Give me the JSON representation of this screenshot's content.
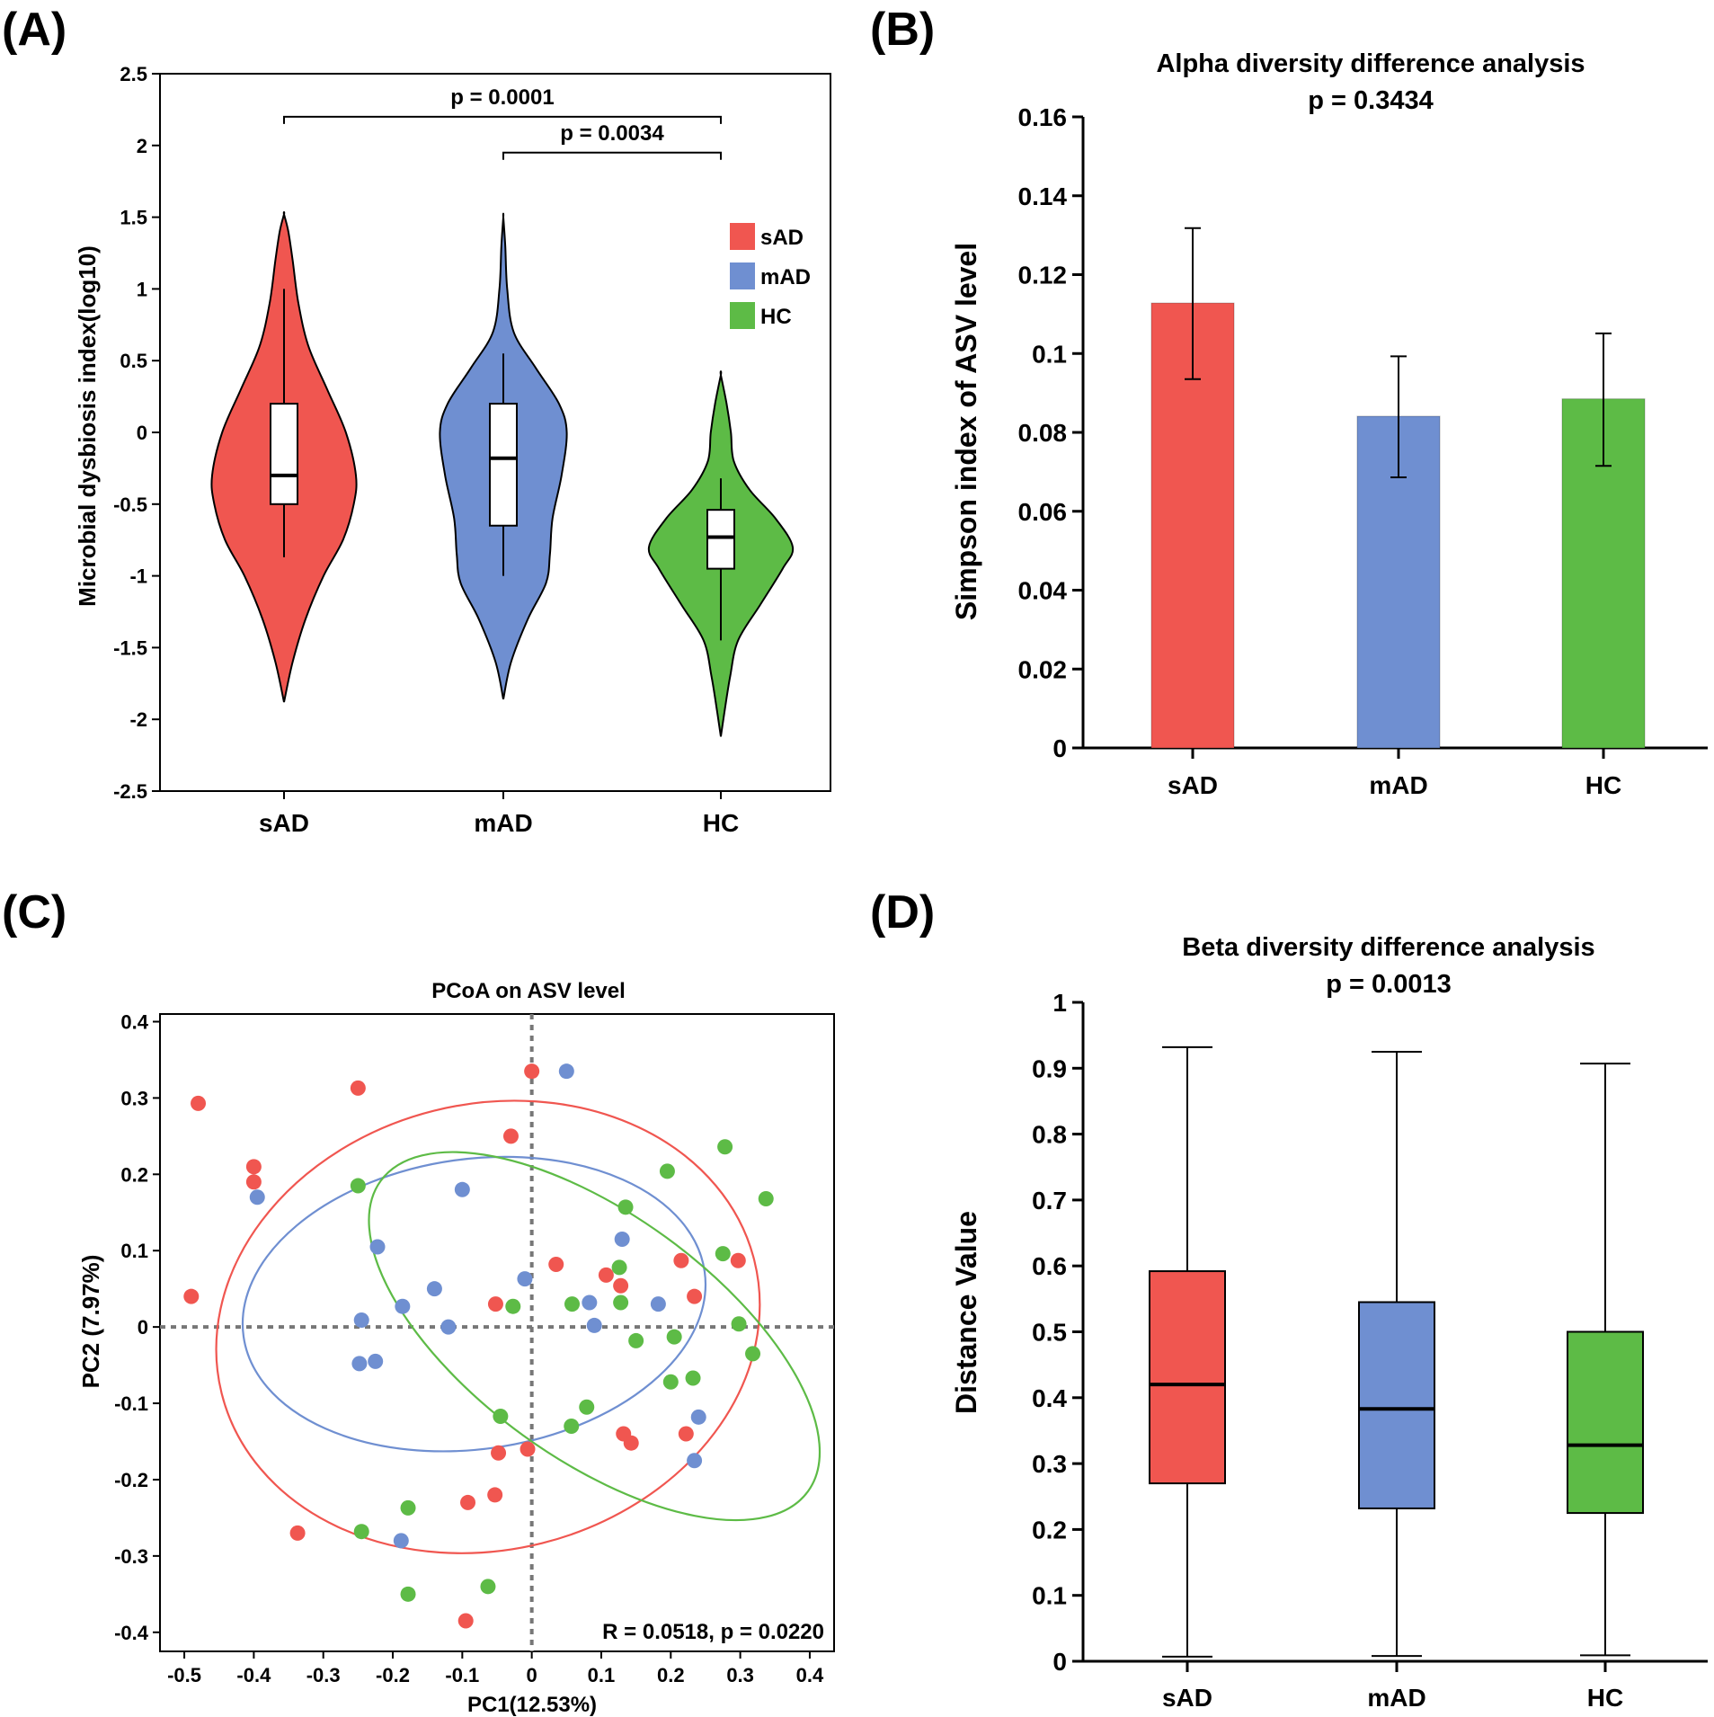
{
  "panel_labels": [
    "(A)",
    "(B)",
    "(C)",
    "(D)"
  ],
  "colors": {
    "sAD": "#f05650",
    "mAD": "#6f8fd1",
    "HC": "#5dbb46"
  },
  "chart_data": [
    {
      "panel": "(A)",
      "type": "violin",
      "title": "",
      "ylabel": "Microbial dysbiosis index(log10)",
      "xlabel": "",
      "ylim": [
        -2.5,
        2.5
      ],
      "yticks": [
        2.5,
        2,
        1.5,
        1,
        0.5,
        0,
        -0.5,
        -1,
        -1.5,
        -2,
        -2.5
      ],
      "ytick_labels": [
        "2.5",
        "2",
        "1.5",
        "1",
        "0.5",
        "0",
        "-0.5",
        "-1",
        "-1.5",
        "-2",
        "-2.5"
      ],
      "categories": [
        "sAD",
        "mAD",
        "HC"
      ],
      "legend": [
        "sAD",
        "mAD",
        "HC"
      ],
      "legend_position": "top-right",
      "violins": [
        {
          "name": "sAD",
          "min": -1.88,
          "max": 1.52,
          "q1": -0.5,
          "median": -0.3,
          "q3": 0.2,
          "whisker_low": -0.87,
          "whisker_high": 1.0,
          "density": [
            [
              -1.88,
              0
            ],
            [
              -1.6,
              0.12
            ],
            [
              -1.3,
              0.3
            ],
            [
              -1.0,
              0.55
            ],
            [
              -0.75,
              0.82
            ],
            [
              -0.5,
              0.97
            ],
            [
              -0.3,
              1.0
            ],
            [
              0,
              0.86
            ],
            [
              0.3,
              0.6
            ],
            [
              0.6,
              0.34
            ],
            [
              0.9,
              0.2
            ],
            [
              1.2,
              0.12
            ],
            [
              1.4,
              0.06
            ],
            [
              1.52,
              0
            ]
          ]
        },
        {
          "name": "mAD",
          "min": -1.86,
          "max": 1.5,
          "q1": -0.65,
          "median": -0.18,
          "q3": 0.2,
          "whisker_low": -1.0,
          "whisker_high": 0.55,
          "density": [
            [
              -1.86,
              0
            ],
            [
              -1.6,
              0.12
            ],
            [
              -1.3,
              0.38
            ],
            [
              -1.05,
              0.66
            ],
            [
              -0.85,
              0.72
            ],
            [
              -0.6,
              0.76
            ],
            [
              -0.3,
              0.9
            ],
            [
              0,
              0.98
            ],
            [
              0.2,
              0.86
            ],
            [
              0.45,
              0.5
            ],
            [
              0.7,
              0.16
            ],
            [
              1.0,
              0.06
            ],
            [
              1.3,
              0.03
            ],
            [
              1.5,
              0
            ]
          ]
        },
        {
          "name": "HC",
          "min": -2.12,
          "max": 0.4,
          "q1": -0.95,
          "median": -0.73,
          "q3": -0.54,
          "whisker_low": -1.45,
          "whisker_high": -0.32,
          "density": [
            [
              -2.12,
              0
            ],
            [
              -1.95,
              0.05
            ],
            [
              -1.7,
              0.13
            ],
            [
              -1.45,
              0.24
            ],
            [
              -1.2,
              0.55
            ],
            [
              -0.95,
              0.86
            ],
            [
              -0.8,
              1.0
            ],
            [
              -0.6,
              0.76
            ],
            [
              -0.4,
              0.4
            ],
            [
              -0.2,
              0.18
            ],
            [
              0,
              0.14
            ],
            [
              0.2,
              0.08
            ],
            [
              0.4,
              0
            ]
          ]
        }
      ],
      "brackets": [
        {
          "from": "sAD",
          "to": "HC",
          "y": 2.2,
          "label": "p = 0.0001"
        },
        {
          "from": "mAD",
          "to": "HC",
          "y": 1.95,
          "label": "p = 0.0034"
        }
      ]
    },
    {
      "panel": "(B)",
      "type": "bar",
      "title": "Alpha diversity difference analysis",
      "subtitle": "p = 0.3434",
      "ylabel": "Simpson index of ASV level",
      "xlabel": "",
      "ylim": [
        0,
        0.16
      ],
      "yticks": [
        0,
        0.02,
        0.04,
        0.06,
        0.08,
        0.1,
        0.12,
        0.14,
        0.16
      ],
      "ytick_labels": [
        "0",
        "0.02",
        "0.04",
        "0.06",
        "0.08",
        "0.1",
        "0.12",
        "0.14",
        "0.16"
      ],
      "categories": [
        "sAD",
        "mAD",
        "HC"
      ],
      "values": [
        0.1128,
        0.0841,
        0.0885
      ],
      "error_low": [
        0.0935,
        0.0686,
        0.0715
      ],
      "error_high": [
        0.1318,
        0.0993,
        0.1051
      ]
    },
    {
      "panel": "(C)",
      "type": "scatter",
      "title": "PCoA on ASV level",
      "xlabel": "PC1(12.53%)",
      "ylabel": "PC2 (7.97%)",
      "xlim": [
        -0.535,
        0.435
      ],
      "ylim": [
        -0.425,
        0.41
      ],
      "xticks": [
        -0.5,
        -0.4,
        -0.3,
        -0.2,
        -0.1,
        0,
        0.1,
        0.2,
        0.3,
        0.4
      ],
      "xtick_labels": [
        "-0.5",
        "-0.4",
        "-0.3",
        "-0.2",
        "-0.1",
        "0",
        "0.1",
        "0.2",
        "0.3",
        "0.4"
      ],
      "yticks": [
        0.4,
        0.3,
        0.2,
        0.1,
        0,
        -0.1,
        -0.2,
        -0.3,
        -0.4
      ],
      "ytick_labels": [
        "0.4",
        "0.3",
        "0.2",
        "0.1",
        "0",
        "-0.1",
        "-0.2",
        "-0.3",
        "-0.4"
      ],
      "annotation": "R = 0.0518, p = 0.0220",
      "series": [
        {
          "name": "sAD",
          "points": [
            [
              -0.48,
              0.293
            ],
            [
              -0.49,
              0.04
            ],
            [
              -0.4,
              0.21
            ],
            [
              -0.4,
              0.19
            ],
            [
              -0.25,
              0.313
            ],
            [
              0,
              0.335
            ],
            [
              -0.03,
              0.25
            ],
            [
              0.035,
              0.082
            ],
            [
              0.107,
              0.068
            ],
            [
              0.128,
              0.054
            ],
            [
              0.215,
              0.087
            ],
            [
              0.234,
              0.04
            ],
            [
              0.297,
              0.087
            ],
            [
              -0.052,
              0.03
            ],
            [
              0.132,
              -0.14
            ],
            [
              0.143,
              -0.152
            ],
            [
              0.222,
              -0.14
            ],
            [
              -0.048,
              -0.165
            ],
            [
              -0.006,
              -0.16
            ],
            [
              -0.053,
              -0.22
            ],
            [
              -0.092,
              -0.23
            ],
            [
              -0.337,
              -0.27
            ],
            [
              -0.095,
              -0.385
            ]
          ]
        },
        {
          "name": "mAD",
          "points": [
            [
              0.05,
              0.335
            ],
            [
              -0.395,
              0.17
            ],
            [
              -0.1,
              0.18
            ],
            [
              -0.222,
              0.105
            ],
            [
              -0.14,
              0.05
            ],
            [
              -0.186,
              0.027
            ],
            [
              -0.245,
              0.009
            ],
            [
              -0.12,
              0
            ],
            [
              -0.01,
              0.063
            ],
            [
              0.083,
              0.032
            ],
            [
              0.09,
              0.002
            ],
            [
              0.13,
              0.115
            ],
            [
              0.182,
              0.03
            ],
            [
              -0.248,
              -0.048
            ],
            [
              -0.225,
              -0.045
            ],
            [
              0.24,
              -0.118
            ],
            [
              0.234,
              -0.175
            ],
            [
              -0.188,
              -0.28
            ]
          ]
        },
        {
          "name": "HC",
          "points": [
            [
              0.278,
              0.236
            ],
            [
              0.337,
              0.168
            ],
            [
              0.195,
              0.204
            ],
            [
              0.135,
              0.157
            ],
            [
              -0.25,
              0.185
            ],
            [
              0.275,
              0.096
            ],
            [
              0.126,
              0.078
            ],
            [
              0.128,
              0.032
            ],
            [
              0.058,
              0.03
            ],
            [
              -0.027,
              0.027
            ],
            [
              0.298,
              0.004
            ],
            [
              0.318,
              -0.035
            ],
            [
              0.15,
              -0.018
            ],
            [
              0.205,
              -0.013
            ],
            [
              0.232,
              -0.067
            ],
            [
              0.2,
              -0.072
            ],
            [
              -0.045,
              -0.117
            ],
            [
              0.079,
              -0.105
            ],
            [
              0.057,
              -0.13
            ],
            [
              -0.178,
              -0.237
            ],
            [
              -0.245,
              -0.268
            ],
            [
              -0.178,
              -0.35
            ],
            [
              -0.063,
              -0.34
            ]
          ]
        }
      ],
      "ellipses": [
        {
          "name": "sAD",
          "cx": -0.063,
          "cy": 0.0,
          "rx": 0.395,
          "ry": 0.292,
          "angle_deg": -14
        },
        {
          "name": "mAD",
          "cx": -0.083,
          "cy": 0.03,
          "rx": 0.335,
          "ry": 0.19,
          "angle_deg": -8
        },
        {
          "name": "HC",
          "cx": 0.09,
          "cy": -0.012,
          "rx": 0.38,
          "ry": 0.16,
          "angle_deg": 36
        }
      ]
    },
    {
      "panel": "(D)",
      "type": "boxplot",
      "title": "Beta diversity difference analysis",
      "subtitle": "p = 0.0013",
      "ylabel": "Distance Value",
      "xlabel": "",
      "ylim": [
        0,
        1
      ],
      "yticks": [
        0,
        0.1,
        0.2,
        0.3,
        0.4,
        0.5,
        0.6,
        0.7,
        0.8,
        0.9,
        1
      ],
      "ytick_labels": [
        "0",
        "0.1",
        "0.2",
        "0.3",
        "0.4",
        "0.5",
        "0.6",
        "0.7",
        "0.8",
        "0.9",
        "1"
      ],
      "categories": [
        "sAD",
        "mAD",
        "HC"
      ],
      "boxes": [
        {
          "name": "sAD",
          "min": 0.007,
          "q1": 0.27,
          "median": 0.42,
          "q3": 0.592,
          "max": 0.932
        },
        {
          "name": "mAD",
          "min": 0.008,
          "q1": 0.232,
          "median": 0.383,
          "q3": 0.545,
          "max": 0.925
        },
        {
          "name": "HC",
          "min": 0.009,
          "q1": 0.225,
          "median": 0.328,
          "q3": 0.5,
          "max": 0.907
        }
      ]
    }
  ]
}
